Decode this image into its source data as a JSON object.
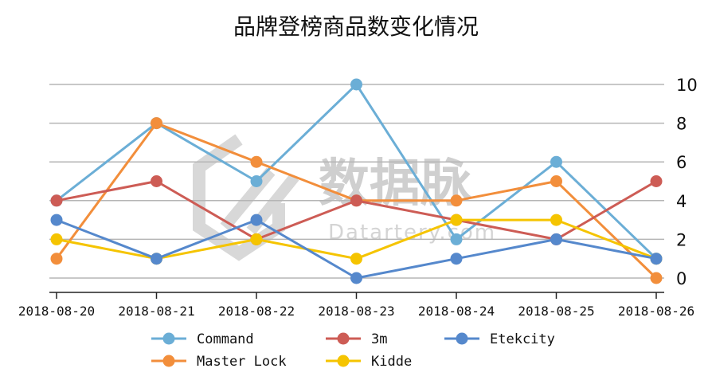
{
  "chart_data": {
    "type": "line",
    "title": "品牌登榜商品数变化情况",
    "categories": [
      "2018-08-20",
      "2018-08-21",
      "2018-08-22",
      "2018-08-23",
      "2018-08-24",
      "2018-08-25",
      "2018-08-26"
    ],
    "ylim": [
      0,
      10
    ],
    "yticks": [
      0,
      2,
      4,
      6,
      8,
      10
    ],
    "grid": true,
    "legend_position": "bottom",
    "series": [
      {
        "name": "Command",
        "color": "#6baed6",
        "values": [
          4,
          8,
          5,
          10,
          2,
          6,
          1
        ]
      },
      {
        "name": "Master Lock",
        "color": "#f28e3b",
        "values": [
          1,
          8,
          6,
          4,
          4,
          5,
          0
        ]
      },
      {
        "name": "3m",
        "color": "#cd5c55",
        "values": [
          4,
          5,
          2,
          4,
          3,
          2,
          5
        ]
      },
      {
        "name": "Kidde",
        "color": "#f5c400",
        "values": [
          2,
          1,
          2,
          1,
          3,
          3,
          1
        ]
      },
      {
        "name": "Etekcity",
        "color": "#5588cc",
        "values": [
          3,
          1,
          3,
          0,
          1,
          2,
          1
        ]
      }
    ]
  },
  "watermark": {
    "text": "数据脉",
    "subtext": "Datartery.com"
  }
}
